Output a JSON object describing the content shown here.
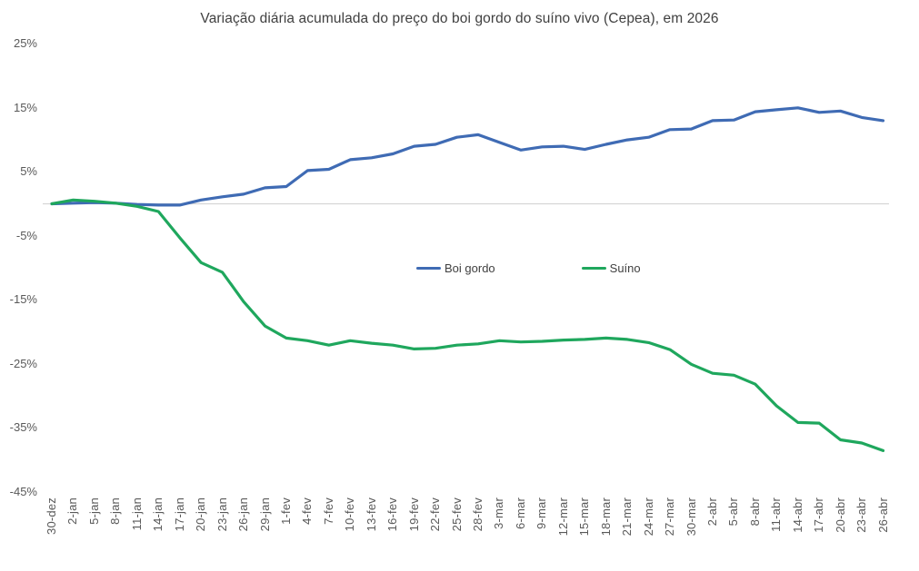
{
  "title": "Variação diária acumulada do preço do boi gordo  do suíno vivo (Cepea), em 2026",
  "colors": {
    "boi_gordo": "#3f6bb4",
    "suino": "#1fa75d",
    "zero_line": "#d6d6d6",
    "title_text": "#404040",
    "axis_text": "#595959"
  },
  "legend": {
    "items": [
      {
        "label": "Boi gordo",
        "color": "#3f6bb4"
      },
      {
        "label": "Suíno",
        "color": "#1fa75d"
      }
    ]
  },
  "chart_data": {
    "type": "line",
    "title": "Variação diária acumulada do preço do boi gordo  do suíno vivo (Cepea), em 2026",
    "xlabel": "",
    "ylabel": "",
    "ylim": [
      -45,
      25
    ],
    "grid": "zero-line-only",
    "legend_position": "center-middle",
    "y_ticks": [
      25,
      15,
      5,
      -5,
      -15,
      -25,
      -35,
      -45
    ],
    "y_tick_suffix": "%",
    "categories": [
      "30-dez",
      "2-jan",
      "5-jan",
      "8-jan",
      "11-jan",
      "14-jan",
      "17-jan",
      "20-jan",
      "23-jan",
      "26-jan",
      "29-jan",
      "1-fev",
      "4-fev",
      "7-fev",
      "10-fev",
      "13-fev",
      "16-fev",
      "19-fev",
      "22-fev",
      "25-fev",
      "28-fev",
      "3-mar",
      "6-mar",
      "9-mar",
      "12-mar",
      "15-mar",
      "18-mar",
      "21-mar",
      "24-mar",
      "27-mar",
      "30-mar",
      "2-abr",
      "5-abr",
      "8-abr",
      "11-abr",
      "14-abr",
      "17-abr",
      "20-abr",
      "23-abr",
      "26-abr"
    ],
    "series": [
      {
        "name": "Boi gordo",
        "color": "#3f6bb4",
        "unit": "%",
        "values": [
          0,
          0.1,
          0.2,
          0.1,
          -0.1,
          -0.2,
          -0.2,
          0.6,
          1.1,
          1.5,
          2.5,
          2.7,
          5.2,
          5.4,
          6.9,
          7.2,
          7.8,
          9.0,
          9.3,
          10.4,
          10.8,
          9.6,
          8.4,
          8.9,
          9.0,
          8.5,
          9.3,
          10.0,
          10.4,
          11.6,
          11.7,
          13.0,
          13.1,
          14.4,
          14.7,
          15.0,
          14.3,
          14.5,
          13.5,
          13.0
        ]
      },
      {
        "name": "Suíno",
        "color": "#1fa75d",
        "unit": "%",
        "values": [
          0,
          0.6,
          0.4,
          0.1,
          -0.4,
          -1.2,
          -5.3,
          -9.2,
          -10.7,
          -15.3,
          -19.1,
          -21.0,
          -21.4,
          -22.1,
          -21.4,
          -21.8,
          -22.1,
          -22.7,
          -22.6,
          -22.1,
          -21.9,
          -21.4,
          -21.6,
          -21.5,
          -21.3,
          -21.2,
          -21.0,
          -21.2,
          -21.7,
          -22.8,
          -25.1,
          -26.5,
          -26.8,
          -28.2,
          -31.6,
          -34.2,
          -34.3,
          -36.9,
          -37.4,
          -38.6
        ]
      }
    ]
  }
}
